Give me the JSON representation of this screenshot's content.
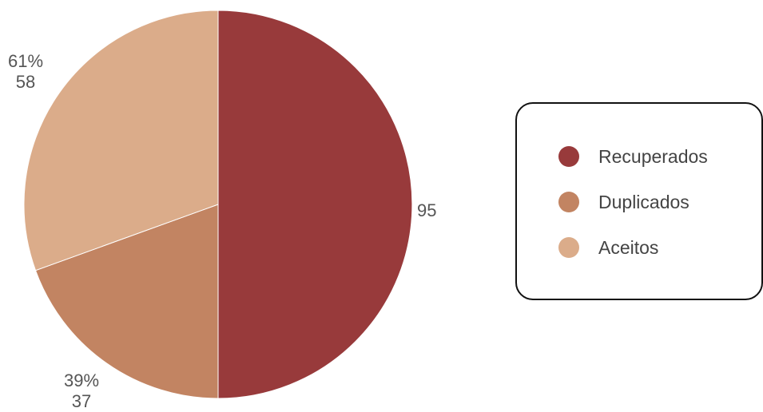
{
  "chart_data": {
    "type": "pie",
    "slices": [
      {
        "name": "Recuperados",
        "value": 95,
        "color": "#983a3b",
        "labels": [
          "95"
        ]
      },
      {
        "name": "Duplicados",
        "value": 37,
        "color": "#c28462",
        "labels": [
          "39%",
          "37"
        ]
      },
      {
        "name": "Aceitos",
        "value": 58,
        "color": "#dbac8a",
        "labels": [
          "61%",
          "58"
        ]
      }
    ],
    "legend_position": "right",
    "start_angle": "top, clockwise"
  },
  "legend": {
    "items": [
      {
        "label": "Recuperados",
        "color": "#983a3b"
      },
      {
        "label": "Duplicados",
        "color": "#c28462"
      },
      {
        "label": "Aceitos",
        "color": "#dbac8a"
      }
    ]
  }
}
